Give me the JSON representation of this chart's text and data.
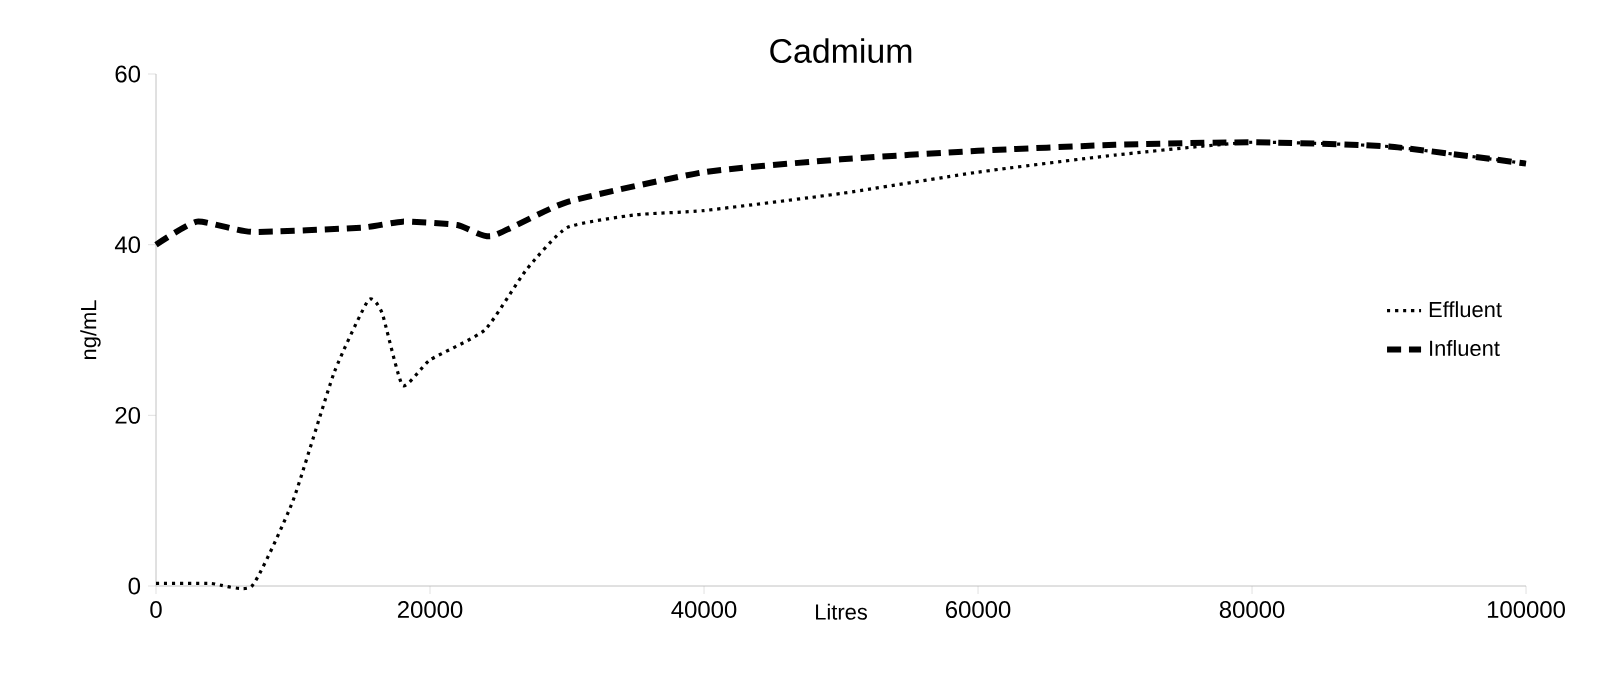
{
  "chart_data": {
    "type": "line",
    "title": "Cadmium",
    "xlabel": "Litres",
    "ylabel": "ng/mL",
    "xlim": [
      0,
      100000
    ],
    "ylim": [
      0,
      60
    ],
    "xticks": [
      0,
      20000,
      40000,
      60000,
      80000,
      100000
    ],
    "yticks": [
      0,
      20,
      40,
      60
    ],
    "grid": false,
    "legend": "right",
    "marker": "none",
    "series": [
      {
        "name": "Effluent",
        "color": "#000000",
        "line_style": "dotted",
        "x": [
          0,
          4000,
          7000,
          10000,
          13000,
          15500,
          16500,
          18000,
          20000,
          24000,
          27000,
          30000,
          35000,
          40000,
          50000,
          60000,
          70000,
          80000,
          90000,
          100000
        ],
        "values": [
          0.3,
          0.3,
          0,
          10,
          25,
          33.5,
          32,
          23.5,
          26.5,
          30,
          37,
          42,
          43.5,
          44,
          46,
          48.5,
          50.5,
          52,
          51.5,
          49.5
        ]
      },
      {
        "name": "Influent",
        "color": "#000000",
        "line_style": "dashed",
        "x": [
          0,
          3000,
          7000,
          15000,
          18000,
          22000,
          24500,
          30000,
          40000,
          50000,
          60000,
          70000,
          80000,
          90000,
          100000
        ],
        "values": [
          40,
          42.7,
          41.5,
          42,
          42.7,
          42.3,
          41,
          45,
          48.5,
          50,
          51,
          51.7,
          52,
          51.5,
          49.5
        ]
      }
    ]
  }
}
